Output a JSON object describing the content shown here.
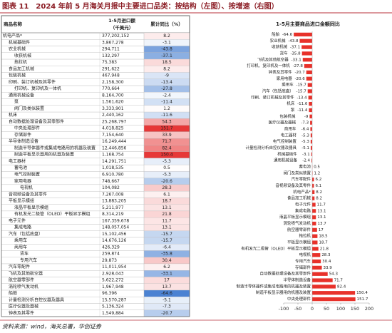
{
  "title": "图表 11　2024 年前 5 月海关月报中主要进口品类：按结构（左图）、按增速（右图）",
  "source": "资料来源：wind，海关总署，华创证券",
  "table": {
    "columns": [
      "商品名称",
      [
        "1-5月进口额",
        "（千美元）"
      ],
      "累计同比（%）"
    ],
    "rows": [
      [
        "机电产品*",
        "377,202,152",
        8.2
      ],
      [
        "机械基础件",
        "3,867,278",
        -3.1
      ],
      [
        "农业机械",
        "294,711",
        -43.8
      ],
      [
        "收获机械",
        "132,297",
        -37.1
      ],
      [
        "拖拉机",
        "75,383",
        18.5
      ],
      [
        "食品加工机械",
        "291,622",
        8.2
      ],
      [
        "包装机械",
        "467,948",
        -9
      ],
      [
        "印刷、装订机械及其零件",
        "2,158,300",
        -13.4
      ],
      [
        "打印机、复印机及一体机",
        "770,664",
        -27.8
      ],
      [
        "通用机械设备",
        "8,164,700",
        -2.4
      ],
      [
        "泵",
        "1,561,620",
        -11.4
      ],
      [
        "阀门及类似装置",
        "3,333,901",
        1.2
      ],
      [
        "机床",
        "2,440,162",
        -11.6
      ],
      [
        "自动数据处理设备及其零部件",
        "25,268,797",
        54.3
      ],
      [
        "中央处理部件",
        "4,018,825",
        151.7
      ],
      [
        "存储部件",
        "7,154,640",
        33.9
      ],
      [
        "半导体制造设备",
        "16,249,444",
        71.7
      ],
      [
        "制造半导体器件或集成电路用的机器及装置",
        "12,446,856",
        82.4
      ],
      [
        "制造平板显示器用的机器及装置",
        "1,168,754",
        150.4
      ],
      [
        "电工器材",
        "14,291,751",
        -5.3
      ],
      [
        "蓄电池",
        "1,018,535",
        0.5
      ],
      [
        "电气控制装置",
        "6,910,780",
        -5.3
      ],
      [
        "家用电器",
        "748,667",
        -20.6
      ],
      [
        "电视机",
        "104,082",
        28.3
      ],
      [
        "音视频设备及其零件",
        "7,267,008",
        6.1
      ],
      [
        "平板显示模组",
        "13,883,205",
        18.7
      ],
      [
        "液晶平板显示模组",
        "5,211,977",
        13.1
      ],
      [
        "有机发光二极管（OLED）平板显示模组",
        "8,314,219",
        21.8
      ],
      [
        "电子元件",
        "167,359,678",
        11.7
      ],
      [
        "集成电路",
        "148,057,054",
        13.1
      ],
      [
        "汽车（包括底盘）",
        "15,102,456",
        -15.7
      ],
      [
        "乘用车",
        "14,676,126",
        -15.7
      ],
      [
        "商用车",
        "426,329",
        -6.4
      ],
      [
        "货车",
        "259,874",
        -35.8
      ],
      [
        "专用汽车",
        "29,873",
        30.4
      ],
      [
        "汽车零配件",
        "11,011,954",
        6.2
      ],
      [
        "飞机及其他航空器",
        "2,928,043",
        -33.1
      ],
      [
        "航空器零部件",
        "5,622,272",
        17
      ],
      [
        "涡轮喷气发动机",
        "1,967,948",
        13.7
      ],
      [
        "船舶",
        "96,396",
        -64.6
      ],
      [
        "计量检测分析自控仪器及器具",
        "15,570,287",
        -5.1
      ],
      [
        "医疗仪器及器械",
        "5,136,324",
        -7.3
      ],
      [
        "钟表及其零件",
        "1,549,884",
        -20.7
      ]
    ]
  },
  "chart_data": {
    "type": "hbar",
    "title": "1-5月主要商品进口金额同比",
    "color": "#e8312a",
    "categories": [
      "船舶",
      "农业机械",
      "收获机械",
      "货车",
      "飞机及其他航空器",
      "打印机、复印机及一体机",
      "钟表及其零件",
      "家用电器",
      "乘用车",
      "汽车（包括底盘）",
      "印刷、装订机械及其零件",
      "机床",
      "泵",
      "包装机械",
      "医疗仪器及器械",
      "商用车",
      "电工器材",
      "电气控制装置",
      "计量检测分析自控仪器及器具",
      "机械基础件",
      "通用机械设备",
      "蓄电池",
      "阀门及类似装置",
      "汽车零配件",
      "音视频设备及其零件",
      "机电产品*",
      "食品加工机械",
      "电子元件",
      "集成电路",
      "液晶平板显示模组",
      "涡轮喷气发动机",
      "航空器零部件",
      "拖拉机",
      "平板显示模组",
      "有机发光二极管（OLED）平板显示模组",
      "电视机",
      "专用汽车",
      "存储部件",
      "自动数据处理设备及其零部件",
      "半导体制造设备",
      "制造半导体器件或集成电路用的机器及装置",
      "制造平板显示器用的机器及装置",
      "中央处理部件"
    ],
    "values": [
      -64.6,
      -43.8,
      -37.1,
      -35.8,
      -33.1,
      -27.8,
      -20.7,
      -20.6,
      -15.7,
      -15.7,
      -13.4,
      -11.6,
      -11.4,
      -9,
      -7.3,
      -6.4,
      -5.3,
      -5.3,
      -5.1,
      -3.1,
      -2.4,
      0.5,
      1.2,
      6.2,
      6.1,
      8.2,
      8.2,
      11.7,
      13.1,
      13.1,
      13.7,
      17,
      18.5,
      18.7,
      21.8,
      28.3,
      30.4,
      33.9,
      54.3,
      71.7,
      82.4,
      150.4,
      151.7
    ],
    "xlim": [
      -100,
      200
    ],
    "xticks": [
      -100,
      -50,
      0,
      50,
      100,
      150,
      200
    ]
  }
}
